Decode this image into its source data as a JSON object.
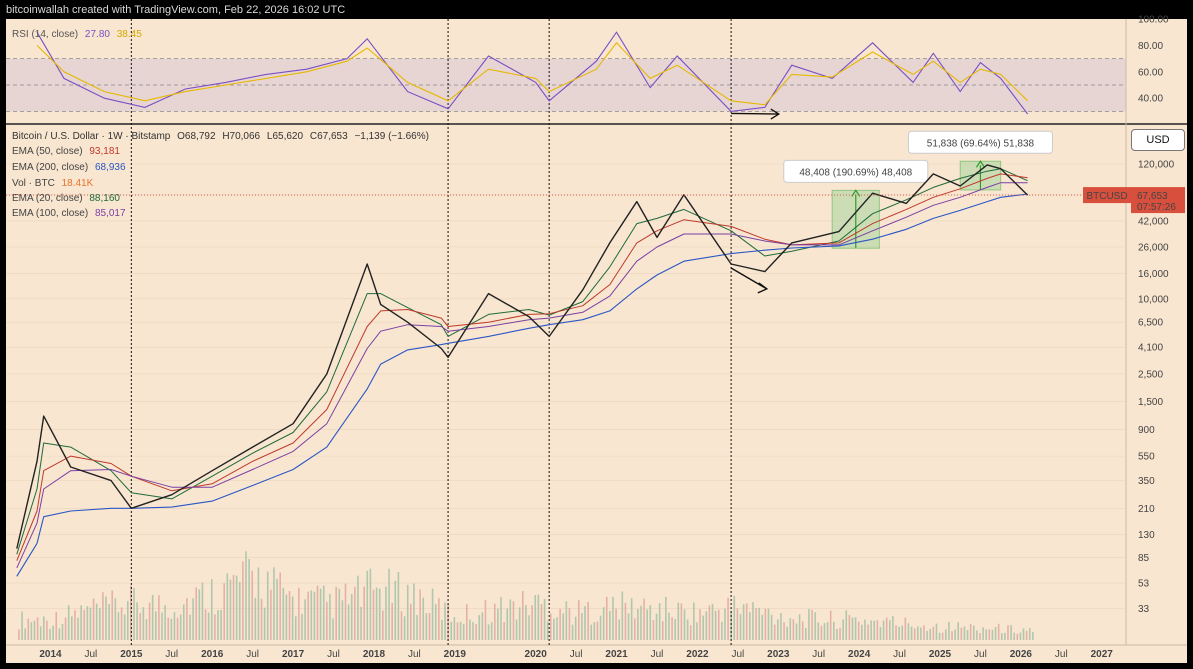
{
  "header": "bitcoinwallah created with TradingView.com, Feb 22, 2026 16:02 UTC",
  "rsi_legend": {
    "name": "RSI (14, close)",
    "value1": "27.80",
    "value2": "38.45"
  },
  "price_legend": {
    "symbol": "Bitcoin / U.S. Dollar · 1W · Bitstamp",
    "o": "O68,792",
    "h": "H70,066",
    "l": "L65,620",
    "c": "C67,653",
    "change": "−1,139 (−1.66%)"
  },
  "indicators": [
    {
      "name": "EMA (50, close)",
      "value": "93,181",
      "color": "#c0392b"
    },
    {
      "name": "EMA (200, close)",
      "value": "68,936",
      "color": "#2a56c6"
    },
    {
      "name": "Vol · BTC",
      "value": "18.41K",
      "color": "#e8732a"
    },
    {
      "name": "EMA (20, close)",
      "value": "88,160",
      "color": "#1f6b3a"
    },
    {
      "name": "EMA (100, close)",
      "value": "85,017",
      "color": "#7a3fa5"
    }
  ],
  "annotations": [
    {
      "text": "48,408 (190.69%) 48,408"
    },
    {
      "text": "51,838 (69.64%) 51,838"
    }
  ],
  "currency_button": "USD",
  "price_badge": {
    "symbol": "BTCUSD",
    "price": "67,653",
    "countdown": "07:57:26",
    "color": "#d94f3d"
  },
  "colors": {
    "background": "#f8e6d0",
    "candle_up": "#222222",
    "candle_down": "#555555",
    "rsi_line": "#7b4fc4",
    "rsi_ma": "#e6b800",
    "volume_up": "#9fbfa4",
    "volume_down": "#e0a49c"
  },
  "chart_data": [
    {
      "type": "line",
      "title": "RSI (14, close)",
      "yticks": [
        "100.00",
        "80.00",
        "60.00",
        "40.00"
      ],
      "y_tick_values": [
        100,
        80,
        60,
        40
      ],
      "levels": [
        70,
        50,
        30
      ],
      "ylim": [
        25,
        100
      ],
      "x": [
        "2013-11",
        "2014-03",
        "2014-09",
        "2015-03",
        "2015-09",
        "2016-03",
        "2016-09",
        "2017-03",
        "2017-09",
        "2017-12",
        "2018-06",
        "2018-12",
        "2019-06",
        "2020-01",
        "2020-03",
        "2020-10",
        "2021-01",
        "2021-06",
        "2021-10",
        "2022-06",
        "2022-11",
        "2023-03",
        "2023-09",
        "2024-03",
        "2024-09",
        "2024-12",
        "2025-04",
        "2025-07",
        "2025-10",
        "2026-02"
      ],
      "series": [
        {
          "values": [
            90,
            55,
            40,
            33,
            47,
            52,
            58,
            62,
            70,
            85,
            45,
            32,
            72,
            52,
            38,
            68,
            90,
            48,
            72,
            30,
            33,
            65,
            55,
            82,
            52,
            74,
            45,
            67,
            55,
            28
          ]
        },
        {
          "values": [
            80,
            60,
            45,
            38,
            45,
            50,
            55,
            60,
            68,
            78,
            52,
            38,
            62,
            55,
            45,
            62,
            82,
            55,
            65,
            38,
            35,
            58,
            56,
            75,
            58,
            68,
            52,
            62,
            58,
            38
          ]
        }
      ]
    },
    {
      "type": "line",
      "title": "Bitcoin / U.S. Dollar · 1W · Bitstamp",
      "log_scale": true,
      "xticks": [
        "2014",
        "Jul",
        "2015",
        "Jul",
        "2016",
        "Jul",
        "2017",
        "Jul",
        "2018",
        "Jul",
        "2019",
        "2020",
        "Jul",
        "2021",
        "Jul",
        "2022",
        "Jul",
        "2023",
        "Jul",
        "2024",
        "Jul",
        "2025",
        "Jul",
        "2026",
        "Jul",
        "2027"
      ],
      "x_tick_dates": [
        "2014-01",
        "2014-07",
        "2015-01",
        "2015-07",
        "2016-01",
        "2016-07",
        "2017-01",
        "2017-07",
        "2018-01",
        "2018-07",
        "2019-01",
        "2020-01",
        "2020-07",
        "2021-01",
        "2021-07",
        "2022-01",
        "2022-07",
        "2023-01",
        "2023-07",
        "2024-01",
        "2024-07",
        "2025-01",
        "2025-07",
        "2026-01",
        "2026-07",
        "2027-01"
      ],
      "yticks": [
        "120,000",
        "68,000",
        "42,000",
        "26,000",
        "16,000",
        "10,000",
        "6,500",
        "4,100",
        "2,500",
        "1,500",
        "900",
        "550",
        "350",
        "210",
        "130",
        "85",
        "53",
        "33"
      ],
      "y_tick_values": [
        120000,
        68000,
        42000,
        26000,
        16000,
        10000,
        6500,
        4100,
        2500,
        1500,
        900,
        550,
        350,
        210,
        130,
        85,
        53,
        33
      ],
      "vertical_markers": [
        "2015-01",
        "2018-12",
        "2020-03",
        "2022-06"
      ],
      "x": [
        "2013-08",
        "2013-11",
        "2013-12",
        "2014-04",
        "2014-10",
        "2015-01",
        "2015-07",
        "2016-01",
        "2016-07",
        "2017-01",
        "2017-06",
        "2017-12",
        "2018-02",
        "2018-06",
        "2018-11",
        "2018-12",
        "2019-06",
        "2019-12",
        "2020-03",
        "2020-08",
        "2020-12",
        "2021-04",
        "2021-07",
        "2021-11",
        "2022-06",
        "2022-11",
        "2023-03",
        "2023-10",
        "2024-03",
        "2024-08",
        "2024-12",
        "2025-04",
        "2025-08",
        "2025-10",
        "2026-02"
      ],
      "series": [
        {
          "name": "Price",
          "values": [
            100,
            500,
            1150,
            450,
            350,
            210,
            270,
            420,
            650,
            1000,
            2500,
            19000,
            9000,
            6500,
            4000,
            3400,
            11000,
            7200,
            5000,
            11800,
            28000,
            60000,
            31000,
            68000,
            19000,
            16500,
            28000,
            34500,
            70000,
            58000,
            100000,
            80000,
            118000,
            110000,
            67653
          ]
        },
        {
          "name": "EMA (20)",
          "values": [
            90,
            300,
            700,
            650,
            420,
            280,
            250,
            380,
            580,
            850,
            1800,
            11000,
            11000,
            8500,
            6200,
            5000,
            7500,
            8200,
            7400,
            9500,
            18000,
            40000,
            44000,
            52000,
            35000,
            22000,
            24000,
            29000,
            48000,
            62000,
            78000,
            92000,
            105000,
            110000,
            88160
          ]
        },
        {
          "name": "EMA (50)",
          "values": [
            80,
            200,
            420,
            550,
            480,
            380,
            290,
            330,
            500,
            700,
            1300,
            6000,
            8000,
            8200,
            7000,
            6000,
            6500,
            7500,
            7600,
            8800,
            13000,
            28000,
            35000,
            43000,
            38000,
            30000,
            27000,
            28000,
            40000,
            52000,
            65000,
            76000,
            92000,
            100000,
            93181
          ]
        },
        {
          "name": "EMA (100)",
          "values": [
            70,
            160,
            300,
            420,
            430,
            380,
            310,
            310,
            430,
            600,
            1000,
            4000,
            5500,
            6200,
            6000,
            5500,
            6000,
            6800,
            7000,
            7800,
            10500,
            20000,
            26000,
            33000,
            33000,
            29000,
            27000,
            27000,
            35000,
            45000,
            56000,
            65000,
            78000,
            85000,
            85017
          ]
        },
        {
          "name": "EMA (200)",
          "values": [
            60,
            110,
            180,
            200,
            210,
            210,
            215,
            240,
            320,
            430,
            650,
            1900,
            3000,
            3900,
            4300,
            4400,
            5000,
            5800,
            6200,
            6800,
            8000,
            12000,
            15500,
            20000,
            23000,
            24500,
            25500,
            26500,
            30000,
            36000,
            44000,
            51000,
            60000,
            65000,
            68936
          ]
        }
      ],
      "measures": [
        {
          "label": "48,408 (190.69%) 48,408",
          "from": [
            "2023-09",
            25400
          ],
          "to": [
            "2024-04",
            73800
          ]
        },
        {
          "label": "51,838 (69.64%) 51,838",
          "from": [
            "2025-04",
            74400
          ],
          "to": [
            "2025-10",
            126200
          ]
        }
      ]
    },
    {
      "type": "bar",
      "title": "Vol · BTC",
      "last_value": "18.41K",
      "x": [
        "2014-01",
        "2014-07",
        "2015-01",
        "2015-07",
        "2016-01",
        "2016-07",
        "2017-01",
        "2017-07",
        "2018-01",
        "2018-07",
        "2019-01",
        "2019-07",
        "2020-01",
        "2020-07",
        "2021-01",
        "2021-07",
        "2022-01",
        "2022-07",
        "2023-01",
        "2023-07",
        "2024-01",
        "2024-07",
        "2025-01",
        "2025-07",
        "2026-01"
      ],
      "values": [
        0.3,
        0.45,
        0.55,
        0.5,
        0.7,
        0.95,
        0.6,
        0.55,
        0.75,
        0.65,
        0.35,
        0.45,
        0.55,
        0.4,
        0.5,
        0.45,
        0.4,
        0.5,
        0.35,
        0.3,
        0.3,
        0.25,
        0.2,
        0.18,
        0.15
      ]
    }
  ]
}
